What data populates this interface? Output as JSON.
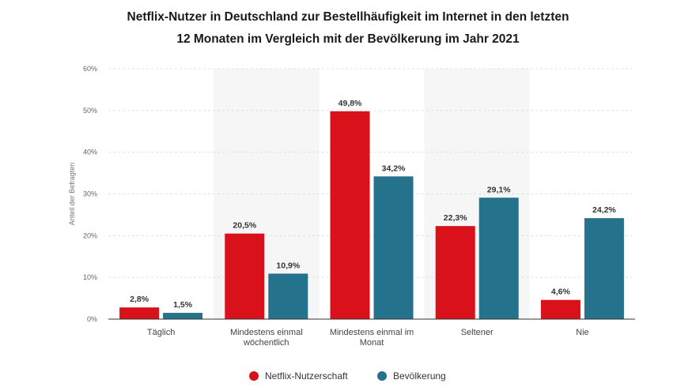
{
  "chart_data": {
    "type": "bar",
    "title_line1": "Netflix-Nutzer in Deutschland zur Bestellhäufigkeit im Internet in den letzten",
    "title_line2": "12 Monaten im Vergleich mit der Bevölkerung im Jahr 2021",
    "ylabel": "Anteil der Befragten",
    "xlabel": "",
    "ylim": [
      0,
      60
    ],
    "yticks": [
      "0%",
      "10%",
      "20%",
      "30%",
      "40%",
      "50%",
      "60%"
    ],
    "categories": [
      [
        "Täglich"
      ],
      [
        "Mindestens einmal",
        "wöchentlich"
      ],
      [
        "Mindestens einmal im",
        "Monat"
      ],
      [
        "Seltener"
      ],
      [
        "Nie"
      ]
    ],
    "series": [
      {
        "name": "Netflix-Nutzerschaft",
        "color": "#d8111b",
        "values": [
          2.8,
          20.5,
          49.8,
          22.3,
          4.6
        ],
        "labels": [
          "2,8%",
          "20,5%",
          "49,8%",
          "22,3%",
          "4,6%"
        ]
      },
      {
        "name": "Bevölkerung",
        "color": "#24728b",
        "values": [
          1.5,
          10.9,
          34.2,
          29.1,
          24.2
        ],
        "labels": [
          "1,5%",
          "10,9%",
          "34,2%",
          "29,1%",
          "24,2%"
        ]
      }
    ],
    "grid": true,
    "legend_position": "bottom-center"
  }
}
